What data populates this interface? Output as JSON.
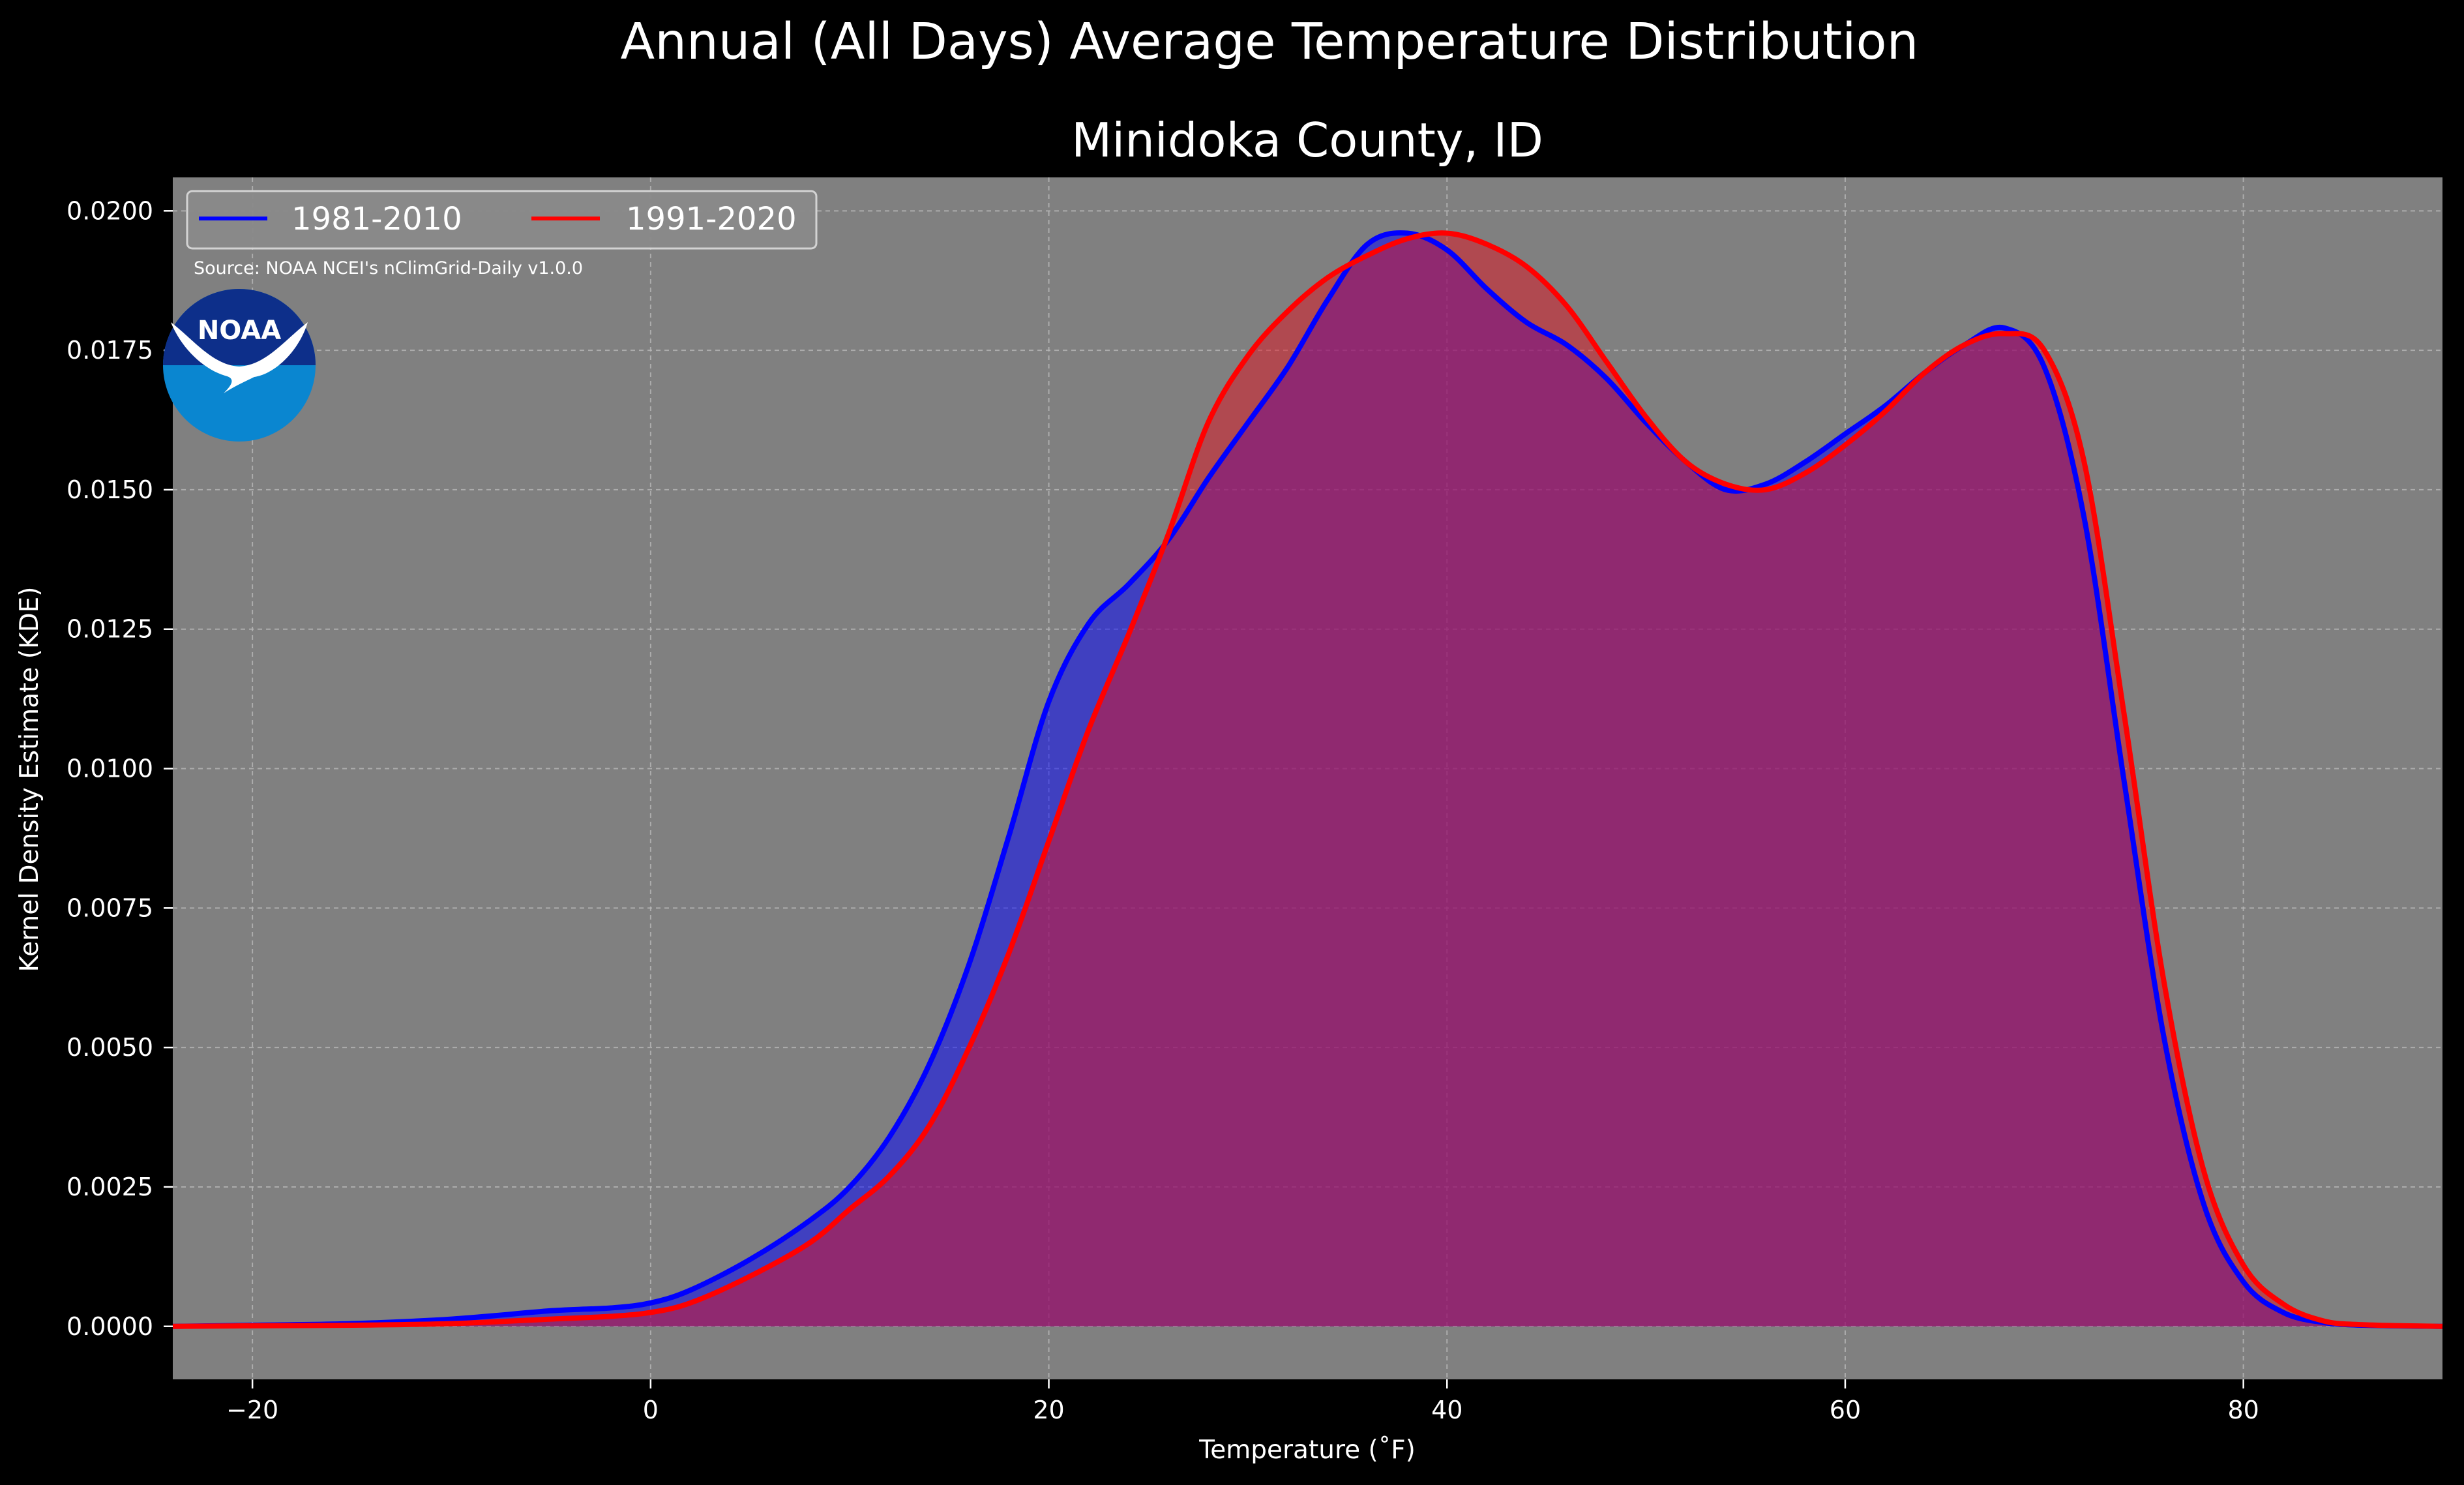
{
  "chart_data": {
    "type": "area",
    "suptitle": "Annual (All Days) Average Temperature Distribution",
    "title": "Minidoka County, ID",
    "xlabel": "Temperature (˚F)",
    "ylabel": "Kernel Density Estimate (KDE)",
    "xlim": [
      -24,
      90
    ],
    "ylim": [
      -0.00095,
      0.0206
    ],
    "xticks": [
      -20,
      0,
      20,
      40,
      60,
      80
    ],
    "xtick_labels": [
      "−20",
      "0",
      "20",
      "40",
      "60",
      "80"
    ],
    "yticks": [
      0,
      0.0025,
      0.005,
      0.0075,
      0.01,
      0.0125,
      0.015,
      0.0175,
      0.02
    ],
    "ytick_labels": [
      "0.0000",
      "0.0025",
      "0.0050",
      "0.0075",
      "0.0100",
      "0.0125",
      "0.0150",
      "0.0175",
      "0.0200"
    ],
    "grid": true,
    "legend_position": "top-left",
    "source_note": "Source: NOAA NCEI's nClimGrid-Daily v1.0.0",
    "logo_text": "NOAA",
    "colors": {
      "background": "#000000",
      "axes_bg": "#808080",
      "text": "#ffffff",
      "noaa_dark": "#0d2f8a",
      "noaa_light": "#0a86d0"
    },
    "series": [
      {
        "name": "1981-2010",
        "color": "#0000ff",
        "fill": "#0000ff",
        "x": [
          -24,
          -20,
          -15,
          -10,
          -5,
          -2,
          0,
          2,
          5,
          8,
          10,
          12,
          14,
          16,
          18,
          20,
          22,
          24,
          26,
          28,
          30,
          32,
          34,
          36,
          38,
          40,
          42,
          44,
          46,
          48,
          50,
          52,
          54,
          56,
          58,
          60,
          62,
          64,
          66,
          68,
          70,
          72,
          74,
          76,
          78,
          80,
          82,
          84,
          86,
          90
        ],
        "y": [
          0.0,
          2e-05,
          5e-05,
          0.00013,
          0.00028,
          0.00033,
          0.00042,
          0.00065,
          0.0012,
          0.0019,
          0.0025,
          0.0034,
          0.0047,
          0.0065,
          0.0088,
          0.0112,
          0.0126,
          0.0133,
          0.0141,
          0.0152,
          0.0162,
          0.0172,
          0.0184,
          0.0194,
          0.0196,
          0.0193,
          0.0186,
          0.018,
          0.0176,
          0.017,
          0.0162,
          0.0155,
          0.015,
          0.0151,
          0.0155,
          0.016,
          0.0165,
          0.0171,
          0.0176,
          0.0179,
          0.0172,
          0.0145,
          0.0098,
          0.0052,
          0.0022,
          0.0008,
          0.00025,
          7e-05,
          2e-05,
          0.0
        ]
      },
      {
        "name": "1991-2020",
        "color": "#ff0000",
        "fill": "#e0111f",
        "x": [
          -24,
          -20,
          -15,
          -10,
          -5,
          -2,
          0,
          2,
          5,
          8,
          10,
          12,
          14,
          16,
          18,
          20,
          22,
          24,
          26,
          28,
          30,
          32,
          34,
          36,
          38,
          40,
          42,
          44,
          46,
          48,
          50,
          52,
          54,
          56,
          58,
          60,
          62,
          64,
          66,
          68,
          70,
          72,
          74,
          76,
          78,
          80,
          82,
          84,
          86,
          90
        ],
        "y": [
          0.0,
          1e-05,
          2e-05,
          5e-05,
          0.00013,
          0.00018,
          0.00025,
          0.00042,
          0.0009,
          0.0015,
          0.0021,
          0.0027,
          0.0036,
          0.005,
          0.0067,
          0.0087,
          0.0107,
          0.0124,
          0.0142,
          0.0162,
          0.0174,
          0.0182,
          0.0188,
          0.0192,
          0.0195,
          0.0196,
          0.0194,
          0.019,
          0.0183,
          0.0173,
          0.0163,
          0.0155,
          0.0151,
          0.015,
          0.0153,
          0.0158,
          0.0164,
          0.0171,
          0.0176,
          0.0178,
          0.0175,
          0.0155,
          0.011,
          0.0062,
          0.0028,
          0.0011,
          0.0004,
          0.0001,
          3e-05,
          0.0
        ]
      }
    ]
  }
}
